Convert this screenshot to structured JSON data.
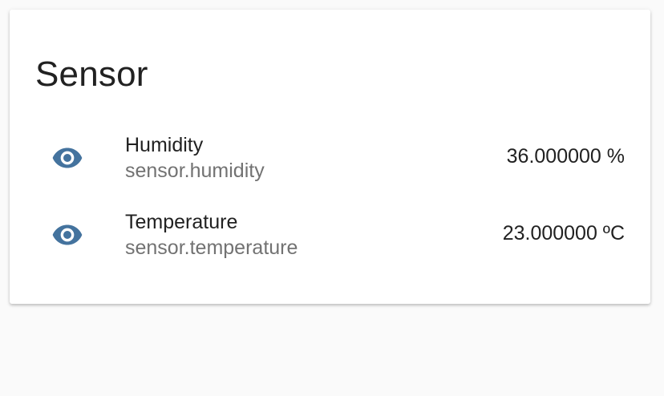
{
  "card": {
    "title": "Sensor"
  },
  "entities": [
    {
      "name": "Humidity",
      "entity_id": "sensor.humidity",
      "state": "36.000000 %",
      "icon": "eye-icon"
    },
    {
      "name": "Temperature",
      "entity_id": "sensor.temperature",
      "state": "23.000000 ºC",
      "icon": "eye-icon"
    }
  ],
  "colors": {
    "icon": "#44739e",
    "primary_text": "#212121",
    "secondary_text": "#727272",
    "card_background": "#ffffff",
    "page_background": "#fafafa"
  }
}
